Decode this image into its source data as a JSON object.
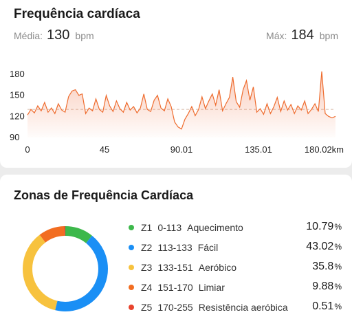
{
  "hr_card": {
    "title": "Frequência cardíaca",
    "avg_label": "Média:",
    "avg_value": "130",
    "max_label": "Máx:",
    "max_value": "184",
    "unit": "bpm"
  },
  "chart_data": {
    "type": "area",
    "title": "",
    "xlabel": "",
    "ylabel": "",
    "x_unit": "km",
    "x_tick_labels": [
      "0",
      "45",
      "90.01",
      "135.01",
      "180.02km"
    ],
    "x_ticks": [
      0,
      45,
      90.01,
      135.01,
      180.02
    ],
    "y_tick_labels": [
      "180",
      "150",
      "120",
      "90"
    ],
    "y_ticks": [
      180,
      150,
      120,
      90
    ],
    "xlim": [
      0,
      180.02
    ],
    "ylim": [
      90,
      180
    ],
    "average_line": 130,
    "grid": false,
    "line_color": "#ee6b2d",
    "series": [
      {
        "x": [
          0,
          2,
          4,
          6,
          8,
          10,
          12,
          14,
          16,
          18,
          20,
          22,
          24,
          26,
          28,
          30,
          32,
          34,
          36,
          38,
          40,
          42,
          44,
          46,
          48,
          50,
          52,
          54,
          56,
          58,
          60,
          62,
          64,
          66,
          68,
          70,
          72,
          74,
          76,
          78,
          80,
          82,
          84,
          86,
          88,
          90,
          92,
          94,
          96,
          98,
          100,
          102,
          104,
          106,
          108,
          110,
          112,
          114,
          116,
          118,
          120,
          122,
          124,
          126,
          128,
          130,
          132,
          134,
          136,
          138,
          140,
          142,
          144,
          146,
          148,
          150,
          152,
          154,
          156,
          158,
          160,
          162,
          164,
          166,
          168,
          170,
          172,
          174,
          176,
          178,
          180
        ],
        "values": [
          122,
          130,
          125,
          135,
          128,
          140,
          126,
          132,
          124,
          138,
          129,
          126,
          148,
          156,
          158,
          150,
          152,
          124,
          132,
          128,
          145,
          130,
          126,
          150,
          135,
          127,
          142,
          131,
          126,
          140,
          129,
          134,
          125,
          132,
          152,
          130,
          127,
          143,
          150,
          132,
          128,
          145,
          134,
          112,
          105,
          102,
          116,
          124,
          134,
          121,
          130,
          148,
          131,
          142,
          152,
          136,
          158,
          128,
          138,
          147,
          176,
          141,
          133,
          158,
          171,
          143,
          162,
          126,
          131,
          123,
          138,
          124,
          134,
          147,
          127,
          142,
          129,
          137,
          124,
          135,
          129,
          142,
          124,
          130,
          138,
          127,
          184,
          124,
          120,
          118,
          120
        ]
      }
    ]
  },
  "zones_card": {
    "title": "Zonas de Frequência Cardíaca",
    "zones": [
      {
        "code": "Z1",
        "range": "0-113",
        "name": "Aquecimento",
        "pct": "10.79",
        "value": 10.79,
        "color": "#3db84b"
      },
      {
        "code": "Z2",
        "range": "113-133",
        "name": "Fácil",
        "pct": "43.02",
        "value": 43.02,
        "color": "#1a8ff5"
      },
      {
        "code": "Z3",
        "range": "133-151",
        "name": "Aeróbico",
        "pct": "35.8",
        "value": 35.8,
        "color": "#f7c23e"
      },
      {
        "code": "Z4",
        "range": "151-170",
        "name": "Limiar",
        "pct": "9.88",
        "value": 9.88,
        "color": "#f26d21"
      },
      {
        "code": "Z5",
        "range": "170-255",
        "name": "Resistência aeróbica",
        "pct": "0.51",
        "value": 0.51,
        "color": "#e8432d"
      }
    ],
    "pct_symbol": "%"
  }
}
